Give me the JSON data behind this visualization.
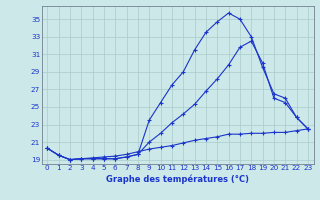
{
  "title": "Graphe des températures (°C)",
  "bg_color": "#cce8e8",
  "line_color": "#1a35cc",
  "xlim": [
    -0.5,
    23.5
  ],
  "ylim": [
    18.5,
    36.5
  ],
  "yticks": [
    19,
    21,
    23,
    25,
    27,
    29,
    31,
    33,
    35
  ],
  "xticks": [
    0,
    1,
    2,
    3,
    4,
    5,
    6,
    7,
    8,
    9,
    10,
    11,
    12,
    13,
    14,
    15,
    16,
    17,
    18,
    19,
    20,
    21,
    22,
    23
  ],
  "series1_x": [
    0,
    1,
    2,
    3,
    4,
    5,
    6,
    7,
    8,
    9,
    10,
    11,
    12,
    13,
    14,
    15,
    16,
    17,
    18,
    19,
    20,
    21,
    22,
    23
  ],
  "series1_y": [
    20.3,
    19.5,
    19.0,
    19.1,
    19.1,
    19.1,
    19.1,
    19.3,
    19.6,
    23.5,
    25.5,
    27.5,
    29.0,
    31.5,
    33.5,
    34.7,
    35.7,
    35.0,
    33.0,
    29.5,
    26.5,
    26.0,
    23.8,
    22.5
  ],
  "series2_x": [
    0,
    1,
    2,
    3,
    4,
    5,
    6,
    7,
    8,
    9,
    10,
    11,
    12,
    13,
    14,
    15,
    16,
    17,
    18,
    19,
    20,
    21,
    22,
    23
  ],
  "series2_y": [
    20.3,
    19.5,
    19.0,
    19.1,
    19.1,
    19.1,
    19.1,
    19.3,
    19.6,
    21.0,
    22.0,
    23.2,
    24.2,
    25.3,
    26.8,
    28.2,
    29.8,
    31.8,
    32.5,
    30.0,
    26.0,
    25.5,
    23.8,
    22.5
  ],
  "series3_x": [
    0,
    1,
    2,
    3,
    4,
    5,
    6,
    7,
    8,
    9,
    10,
    11,
    12,
    13,
    14,
    15,
    16,
    17,
    18,
    19,
    20,
    21,
    22,
    23
  ],
  "series3_y": [
    20.3,
    19.5,
    19.0,
    19.1,
    19.2,
    19.3,
    19.4,
    19.6,
    19.9,
    20.2,
    20.4,
    20.6,
    20.9,
    21.2,
    21.4,
    21.6,
    21.9,
    21.9,
    22.0,
    22.0,
    22.1,
    22.1,
    22.3,
    22.5
  ],
  "grid_color": "#aacccc",
  "tick_color": "#1a35cc",
  "label_fontsize": 6.0,
  "tick_fontsize": 5.2
}
